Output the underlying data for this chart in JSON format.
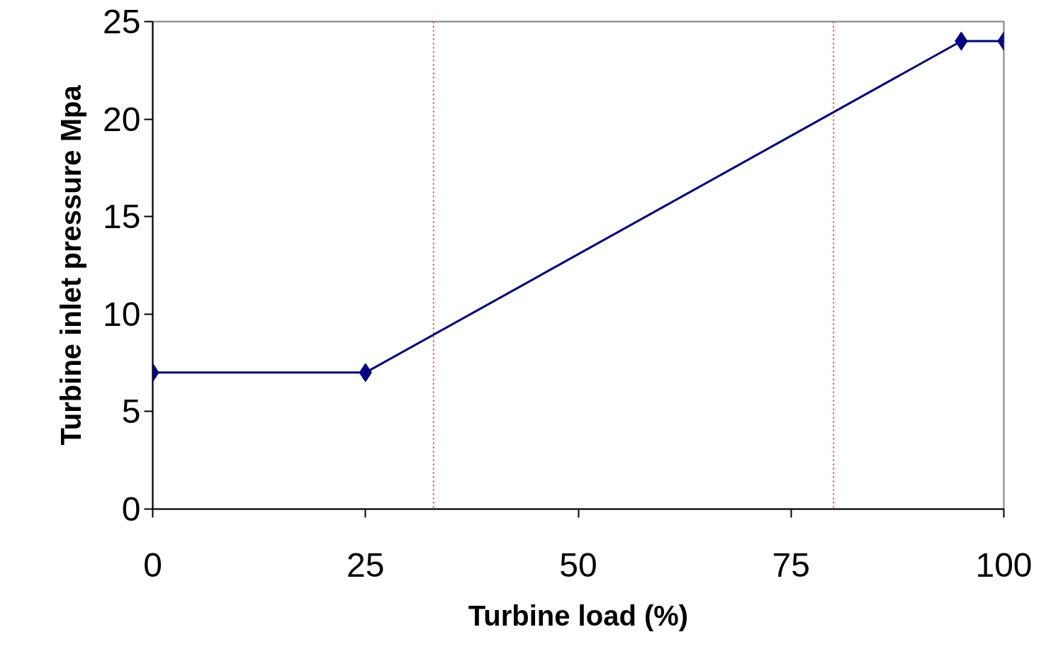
{
  "chart_data": {
    "type": "line",
    "xlabel": "Turbine load (%)",
    "ylabel": "Turbine inlet pressure Mpa",
    "x": [
      0,
      25,
      95,
      100
    ],
    "series": [
      {
        "color": "#000080",
        "values": [
          7,
          7,
          24,
          24
        ]
      }
    ],
    "xlim": [
      0,
      100
    ],
    "xticks": [
      0,
      25,
      50,
      75,
      100
    ],
    "ylim": [
      0,
      25
    ],
    "yticks": [
      0,
      5,
      10,
      15,
      20,
      25
    ],
    "marker": "diamond",
    "line_style": "solid",
    "grid": false,
    "ref_lines": [
      {
        "axis": "x",
        "value": 33,
        "color": "#ff0000",
        "line_style": "dotted"
      },
      {
        "axis": "x",
        "value": 80,
        "color": "#ff0000",
        "line_style": "dotted"
      }
    ]
  }
}
